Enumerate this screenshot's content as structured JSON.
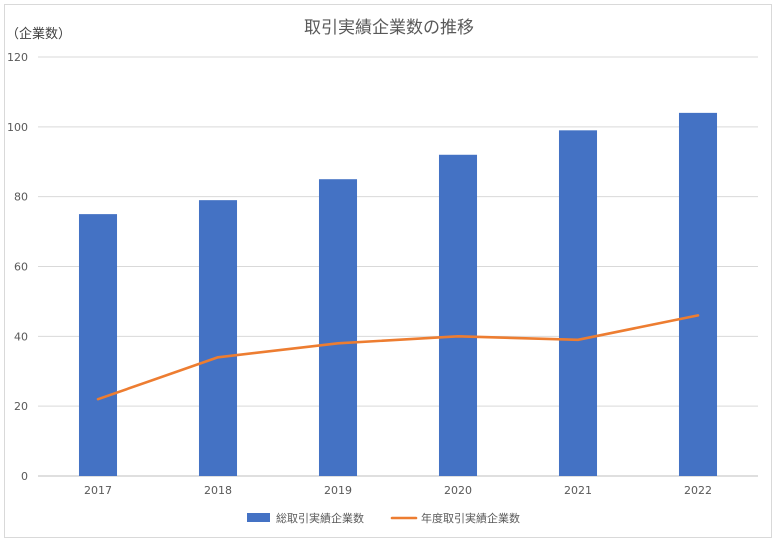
{
  "chart_data": {
    "type": "bar",
    "title": "取引実績企業数の推移",
    "ylabel": "（企業数）",
    "xlabel": "",
    "categories": [
      "2017",
      "2018",
      "2019",
      "2020",
      "2021",
      "2022"
    ],
    "ylim": [
      0,
      120
    ],
    "yticks": [
      0,
      20,
      40,
      60,
      80,
      100,
      120
    ],
    "grid": true,
    "legend_position": "bottom",
    "series": [
      {
        "name": "総取引実績企業数",
        "type": "bar",
        "color": "#4472c4",
        "values": [
          75,
          79,
          85,
          92,
          99,
          104
        ]
      },
      {
        "name": "年度取引実績企業数",
        "type": "line",
        "color": "#ed7d31",
        "values": [
          22,
          34,
          38,
          40,
          39,
          46
        ]
      }
    ]
  }
}
